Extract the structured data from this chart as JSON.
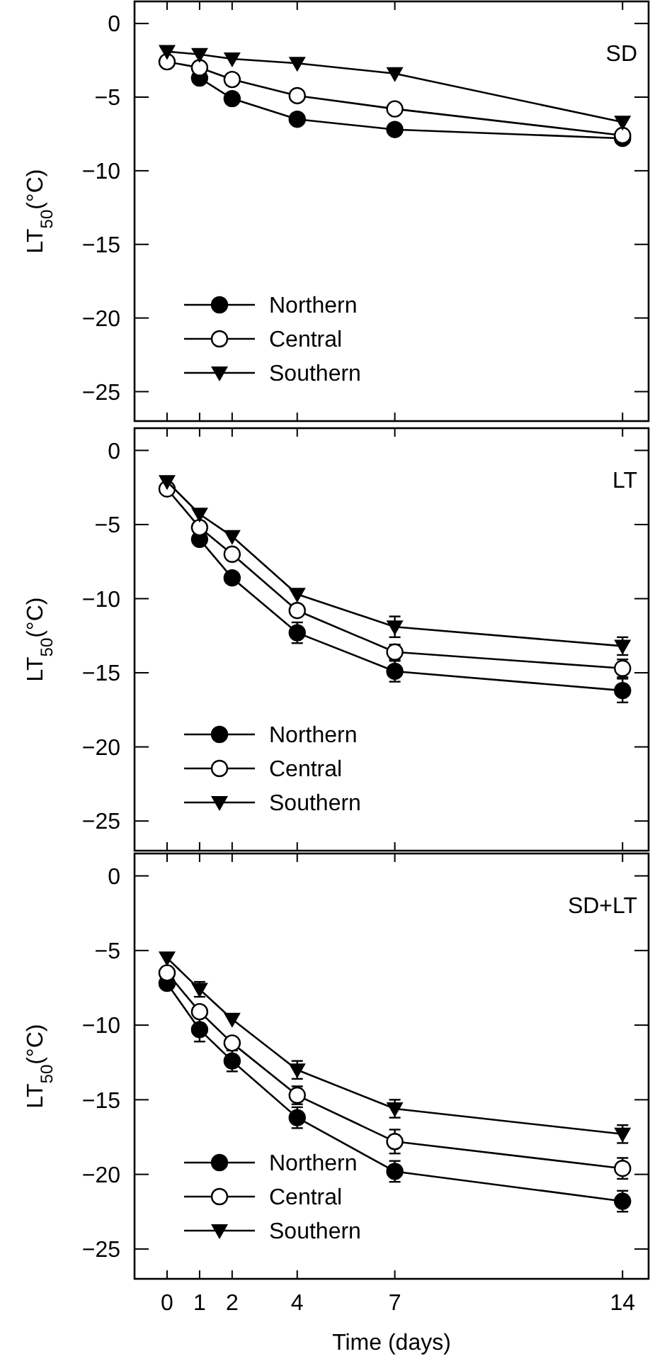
{
  "chart_data": [
    {
      "type": "line",
      "title": "SD",
      "ylabel": "LT$_{50}$(°C)",
      "x": [
        0,
        1,
        2,
        4,
        7,
        14
      ],
      "xlim": [
        -1,
        14.8
      ],
      "xticks": [
        0,
        1,
        2,
        4,
        7,
        14
      ],
      "ylim": [
        -27,
        1.5
      ],
      "yticks": [
        0,
        -5,
        -10,
        -15,
        -20,
        -25
      ],
      "tick_labels": "y",
      "legend": "bottom left",
      "grid": false,
      "series": [
        {
          "name": "Northern",
          "color": "#000000",
          "marker": "circle",
          "values": [
            null,
            -3.7,
            -5.1,
            -6.5,
            -7.2,
            -7.8
          ]
        },
        {
          "name": "Central",
          "color": "#000000",
          "marker": "circle-open",
          "values": [
            -2.6,
            -3.0,
            -3.8,
            -4.9,
            -5.8,
            -7.6
          ]
        },
        {
          "name": "Southern",
          "color": "#000000",
          "marker": "triangle-down",
          "values": [
            -1.9,
            -2.1,
            -2.4,
            -2.7,
            -3.4,
            -6.7
          ]
        }
      ]
    },
    {
      "type": "line",
      "title": "LT",
      "ylabel": "LT$_{50}$(°C)",
      "x": [
        0,
        1,
        2,
        4,
        7,
        14
      ],
      "xlim": [
        -1,
        14.8
      ],
      "xticks": [
        0,
        1,
        2,
        4,
        7,
        14
      ],
      "ylim": [
        -27,
        1.5
      ],
      "yticks": [
        0,
        -5,
        -10,
        -15,
        -20,
        -25
      ],
      "tick_labels": "y",
      "legend": "bottom left",
      "grid": false,
      "series": [
        {
          "name": "Northern",
          "color": "#000000",
          "marker": "circle",
          "values": [
            null,
            -6.0,
            -8.6,
            -12.3,
            -14.9,
            -16.2
          ],
          "errors": [
            null,
            null,
            null,
            0.7,
            0.7,
            0.8
          ]
        },
        {
          "name": "Central",
          "color": "#000000",
          "marker": "circle-open",
          "values": [
            -2.6,
            -5.2,
            -7.0,
            -10.8,
            -13.6,
            -14.7
          ],
          "errors": [
            null,
            null,
            null,
            null,
            0.5,
            0.6
          ]
        },
        {
          "name": "Southern",
          "color": "#000000",
          "marker": "triangle-down",
          "values": [
            -2.1,
            -4.3,
            -5.8,
            -9.7,
            -11.9,
            -13.2
          ],
          "errors": [
            null,
            null,
            null,
            null,
            0.7,
            0.6
          ]
        }
      ]
    },
    {
      "type": "line",
      "title": "SD+LT",
      "ylabel": "LT$_{50}$(°C)",
      "xlabel": "Time (days)",
      "x": [
        0,
        1,
        2,
        4,
        7,
        14
      ],
      "xlim": [
        -1,
        14.8
      ],
      "xticks": [
        0,
        1,
        2,
        4,
        7,
        14
      ],
      "ylim": [
        -27,
        1.5
      ],
      "yticks": [
        0,
        -5,
        -10,
        -15,
        -20,
        -25
      ],
      "legend": "bottom left",
      "grid": false,
      "series": [
        {
          "name": "Northern",
          "color": "#000000",
          "marker": "circle",
          "values": [
            -7.2,
            -10.3,
            -12.4,
            -16.2,
            -19.8,
            -21.8
          ],
          "errors": [
            null,
            0.8,
            0.7,
            0.7,
            0.7,
            0.7
          ]
        },
        {
          "name": "Central",
          "color": "#000000",
          "marker": "circle-open",
          "values": [
            -6.5,
            -9.1,
            -11.2,
            -14.7,
            -17.8,
            -19.6
          ],
          "errors": [
            null,
            null,
            null,
            0.6,
            0.8,
            0.7
          ]
        },
        {
          "name": "Southern",
          "color": "#000000",
          "marker": "triangle-down",
          "values": [
            -5.5,
            -7.6,
            -9.6,
            -13.0,
            -15.6,
            -17.3
          ],
          "errors": [
            null,
            0.5,
            null,
            0.6,
            0.6,
            0.6
          ]
        }
      ]
    }
  ]
}
